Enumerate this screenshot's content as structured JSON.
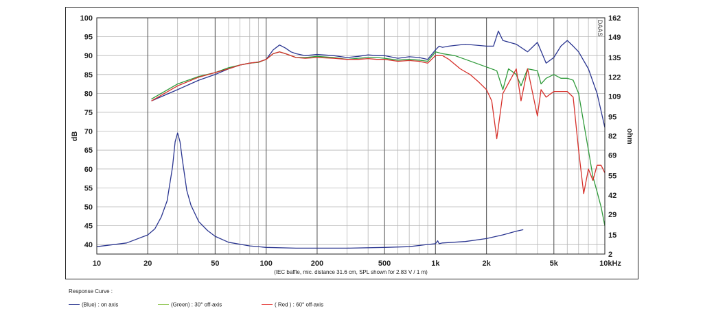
{
  "chart_data": {
    "type": "line",
    "x_scale": "log",
    "xlim": [
      10,
      10000
    ],
    "x_ticks": [
      10,
      20,
      50,
      100,
      200,
      500,
      1000,
      2000,
      5000,
      10000
    ],
    "x_tick_labels": [
      "10",
      "20",
      "50",
      "100",
      "200",
      "500",
      "1k",
      "2k",
      "5k",
      "10kHz"
    ],
    "ylabel_left": "dB",
    "ylim_left": [
      37.5,
      100
    ],
    "y_ticks_left": [
      40,
      45,
      50,
      55,
      60,
      65,
      70,
      75,
      80,
      85,
      90,
      95,
      100
    ],
    "ylabel_right": "ohm",
    "ylim_right": [
      2,
      162
    ],
    "y_ticks_right": [
      2,
      15,
      29,
      42,
      55,
      69,
      82,
      95,
      109,
      122,
      135,
      149,
      162
    ],
    "grid": true,
    "watermark": "DAAS",
    "caption": "(IEC baffle, mic. distance 31.6 cm, SPL shown for 2.83 V / 1 m)",
    "legend_title": "Response Curve :",
    "series": [
      {
        "name": "(Blue)  : on axis",
        "color": "#2a3590",
        "axis": "left",
        "x": [
          21,
          30,
          40,
          50,
          60,
          70,
          80,
          90,
          100,
          110,
          120,
          130,
          140,
          150,
          170,
          200,
          250,
          300,
          350,
          400,
          450,
          500,
          600,
          700,
          800,
          900,
          1000,
          1050,
          1100,
          1200,
          1500,
          2000,
          2200,
          2350,
          2500,
          3000,
          3500,
          4000,
          4500,
          5000,
          5500,
          6000,
          6500,
          7000,
          8000,
          9000,
          10000
        ],
        "y": [
          78,
          81,
          83.5,
          85,
          86.5,
          87.5,
          88,
          88.3,
          89,
          91.5,
          92.8,
          92,
          91,
          90.5,
          90,
          90.3,
          90,
          89.5,
          89.8,
          90.2,
          90,
          90,
          89.3,
          89.7,
          89.5,
          89,
          91.5,
          92.5,
          92.2,
          92.5,
          93,
          92.5,
          92.5,
          96.5,
          94,
          93,
          91,
          93.5,
          88,
          89.5,
          92.5,
          94,
          92.5,
          91,
          86.5,
          80,
          71
        ]
      },
      {
        "name": "(Green) : 30° off-axis",
        "color": "#2f9a3a",
        "axis": "left",
        "x": [
          21,
          30,
          40,
          50,
          60,
          70,
          80,
          90,
          100,
          110,
          120,
          130,
          140,
          150,
          170,
          200,
          250,
          300,
          350,
          400,
          450,
          500,
          600,
          700,
          800,
          900,
          1000,
          1100,
          1300,
          1500,
          2000,
          2300,
          2500,
          2700,
          3000,
          3200,
          3500,
          4000,
          4200,
          4500,
          5000,
          5500,
          6000,
          6500,
          7000,
          8000,
          8500,
          9000,
          9500,
          10000
        ],
        "y": [
          78.5,
          82.5,
          84.5,
          85.5,
          86.8,
          87.5,
          88,
          88.2,
          89,
          90.5,
          91,
          90.5,
          90,
          89.5,
          89.5,
          89.8,
          89.5,
          89,
          89.3,
          89.5,
          89.5,
          89.3,
          88.8,
          89,
          88.8,
          88.5,
          91,
          90.5,
          90,
          89,
          87,
          86,
          81,
          86.5,
          85,
          82,
          86.5,
          86,
          82.5,
          84,
          85,
          84,
          84,
          83.5,
          80,
          65,
          58,
          54,
          50,
          45
        ]
      },
      {
        "name": "( Red ) : 60° off-axis",
        "color": "#d6302a",
        "axis": "left",
        "x": [
          21,
          30,
          40,
          50,
          60,
          70,
          80,
          90,
          100,
          110,
          120,
          130,
          140,
          150,
          170,
          200,
          250,
          300,
          350,
          400,
          450,
          500,
          600,
          700,
          800,
          900,
          1000,
          1100,
          1200,
          1400,
          1600,
          1800,
          2000,
          2150,
          2300,
          2500,
          2800,
          3000,
          3200,
          3500,
          4000,
          4200,
          4500,
          5000,
          5500,
          6000,
          6500,
          7000,
          7500,
          8000,
          8500,
          9000,
          9500,
          10000
        ],
        "y": [
          78,
          82,
          84.3,
          85.5,
          86.5,
          87.5,
          88,
          88.3,
          89,
          90.5,
          91,
          90.5,
          90,
          89.5,
          89.3,
          89.5,
          89.3,
          89,
          89,
          89.2,
          89,
          89,
          88.5,
          88.7,
          88.5,
          88,
          90,
          90,
          89,
          86.5,
          85,
          83,
          81,
          78,
          68,
          80,
          84,
          86.5,
          78,
          86.5,
          74,
          81,
          79,
          80.5,
          80.5,
          80.5,
          79,
          65,
          53.5,
          60,
          57,
          61,
          61,
          59
        ]
      },
      {
        "name": "impedance",
        "color": "#2a3590",
        "axis": "right",
        "x": [
          10,
          15,
          20,
          22,
          24,
          26,
          28,
          29,
          30,
          31,
          32,
          34,
          36,
          40,
          45,
          50,
          60,
          80,
          100,
          150,
          200,
          300,
          500,
          700,
          900,
          1000,
          1030,
          1050,
          1100,
          1500,
          2000,
          2500,
          3000,
          3300
        ],
        "y": [
          7,
          9.5,
          15,
          19,
          27,
          38,
          61,
          78,
          84,
          78,
          66,
          45,
          35,
          24,
          18,
          14,
          10,
          7.5,
          6.5,
          6,
          6,
          6,
          6.5,
          7,
          8.5,
          9,
          11,
          9,
          9.5,
          10.5,
          12.5,
          15,
          17.5,
          18.5
        ]
      }
    ]
  }
}
